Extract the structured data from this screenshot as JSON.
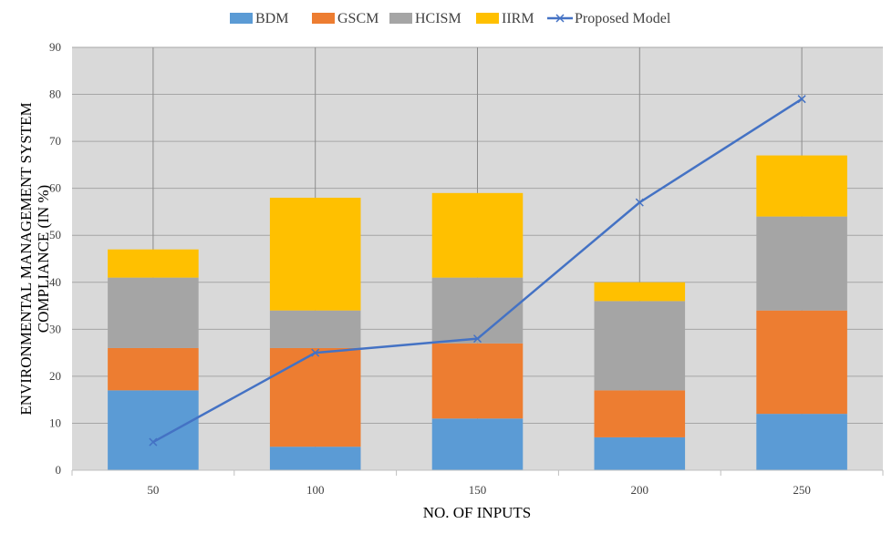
{
  "chart_data": {
    "type": "bar",
    "stacked": true,
    "categories": [
      "50",
      "100",
      "150",
      "200",
      "250"
    ],
    "series": [
      {
        "name": "BDM",
        "type": "bar",
        "color": "#5B9BD5",
        "values": [
          17,
          5,
          11,
          7,
          12
        ]
      },
      {
        "name": "GSCM",
        "type": "bar",
        "color": "#ED7D31",
        "values": [
          9,
          21,
          16,
          10,
          22
        ]
      },
      {
        "name": "HCISM",
        "type": "bar",
        "color": "#A5A5A5",
        "values": [
          15,
          8,
          14,
          19,
          20
        ]
      },
      {
        "name": "IIRM",
        "type": "bar",
        "color": "#FFC000",
        "values": [
          6,
          24,
          18,
          4,
          13
        ]
      },
      {
        "name": "Proposed Model",
        "type": "line",
        "marker": "x",
        "color": "#4472C4",
        "values": [
          6,
          25,
          28,
          57,
          79
        ]
      }
    ],
    "xlabel": "NO. OF INPUTS",
    "ylabel_lines": [
      "ENVIRONMENTAL MANAGEMENT SYSTEM",
      "COMPLIANCE (IN %)"
    ],
    "ylim": [
      0,
      90
    ],
    "yticks": [
      0,
      10,
      20,
      30,
      40,
      50,
      60,
      70,
      80,
      90
    ],
    "grid": true,
    "legend_position": "top",
    "plot_background": "#D9D9D9"
  }
}
